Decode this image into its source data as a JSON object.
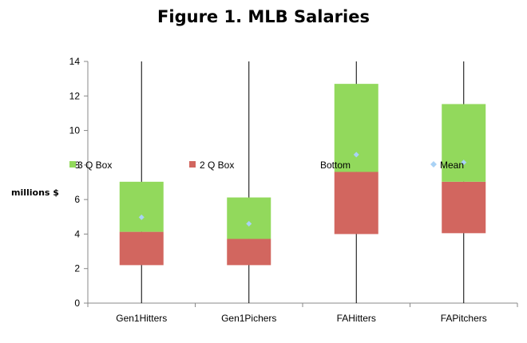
{
  "chart_data": {
    "type": "bar",
    "title": "Figure 1. MLB Salaries",
    "xlabel": "",
    "ylabel": "millions $",
    "ylim": [
      0,
      14
    ],
    "yticks": [
      0,
      2,
      4,
      6,
      8,
      10,
      12,
      14
    ],
    "grid": false,
    "categories": [
      "Gen1Hitters",
      "Gen1Pichers",
      "FAHitters",
      "FAPitchers"
    ],
    "series": [
      {
        "name": "Bottom",
        "values": [
          2.2,
          2.2,
          4.0,
          4.05
        ]
      },
      {
        "name": "2 Q Box",
        "values": [
          1.93,
          1.52,
          3.6,
          2.98
        ]
      },
      {
        "name": "3 Q Box",
        "values": [
          2.9,
          2.4,
          5.1,
          4.5
        ]
      },
      {
        "name": "Mean",
        "values": [
          4.97,
          4.6,
          8.6,
          8.15
        ]
      }
    ],
    "whiskers": {
      "low": [
        0,
        0,
        0,
        0
      ],
      "high": [
        14,
        14,
        14,
        14
      ]
    },
    "colors": {
      "3 Q Box": "#92d95c",
      "2 Q Box": "#d2665f",
      "Mean": "#a9d2f5",
      "axis": "#888888",
      "whisker": "#000000"
    },
    "legend": {
      "placement": "inside-middle",
      "entries": [
        {
          "label": "3 Q Box",
          "icon": "green-square-icon"
        },
        {
          "label": "2 Q Box",
          "icon": "red-square-icon"
        },
        {
          "label": "Bottom",
          "icon": ""
        },
        {
          "label": "Mean",
          "icon": "blue-diamond-icon"
        }
      ]
    }
  }
}
